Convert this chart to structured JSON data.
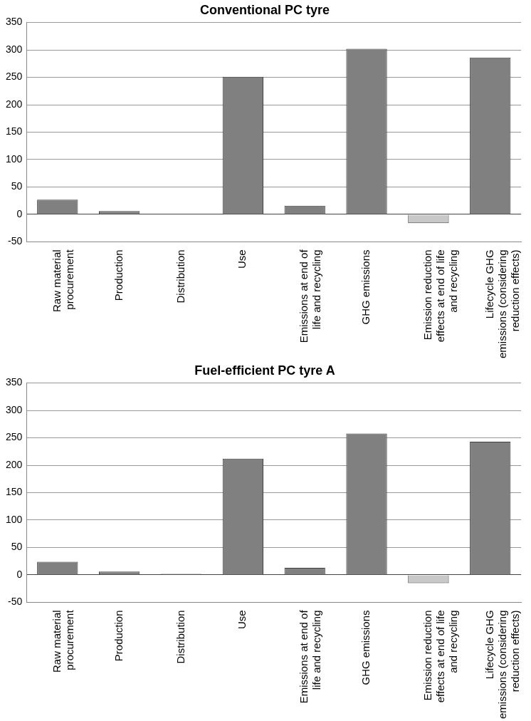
{
  "chart_data": [
    {
      "type": "bar",
      "title": "Conventional PC tyre",
      "categories": [
        "Raw material procurement",
        "Production",
        "Distribution",
        "Use",
        "Emissions at end of life and recycling",
        "GHG emissions",
        "Emission reduction effects at end of life and recycling",
        "Lifecycle GHG emissions (considering reduction effects)"
      ],
      "values": [
        27,
        6,
        1,
        251,
        16,
        302,
        -16,
        286
      ],
      "colors": [
        "#808080",
        "#808080",
        "#808080",
        "#808080",
        "#808080",
        "#808080",
        "#c8c8c8",
        "#808080"
      ],
      "ylim": [
        -50,
        350
      ],
      "yticks": [
        -50,
        0,
        50,
        100,
        150,
        200,
        250,
        300,
        350
      ],
      "grid": "y",
      "legend": false
    },
    {
      "type": "bar",
      "title": "Fuel-efficient PC tyre A",
      "categories": [
        "Raw material procurement",
        "Production",
        "Distribution",
        "Use",
        "Emissions at end of life and recycling",
        "GHG emissions",
        "Emission reduction effects at end of life and recycling",
        "Lifecycle GHG emissions (considering reduction effects)"
      ],
      "values": [
        24,
        6,
        2,
        212,
        13,
        258,
        -15,
        243
      ],
      "colors": [
        "#808080",
        "#808080",
        "#808080",
        "#808080",
        "#808080",
        "#808080",
        "#c8c8c8",
        "#808080"
      ],
      "ylim": [
        -50,
        350
      ],
      "yticks": [
        -50,
        0,
        50,
        100,
        150,
        200,
        250,
        300,
        350
      ],
      "grid": "y",
      "legend": false
    }
  ]
}
